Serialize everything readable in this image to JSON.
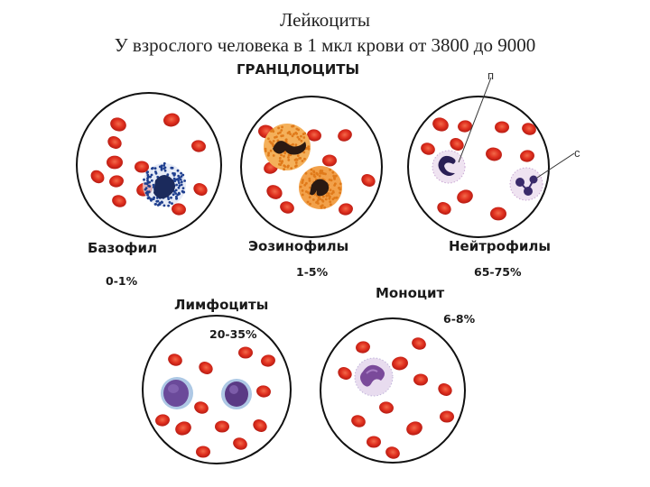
{
  "title": "Лейкоциты",
  "subtitle": "У взрослого человека в 1 мкл крови от 3800 до 9000",
  "section_heading": "ГРАНЦЛОЦИТЫ",
  "cells": [
    {
      "label": "Базофил",
      "percent": "0-1%"
    },
    {
      "label": "Эозинофилы",
      "percent": "1-5%"
    },
    {
      "label": "Нейтрофилы",
      "percent": "65-75%"
    },
    {
      "label": "Лимфоциты",
      "percent": "20-35%"
    },
    {
      "label": "Моноцит",
      "percent": "6-8%"
    }
  ],
  "pointer_labels": [
    "п",
    "с"
  ],
  "colors": {
    "erythrocyte": "#d9281f",
    "basophil_granules": "#1f3f8f",
    "eosinophil_granules": "#e07a1a",
    "neutrophil_nucleus": "#2a1f55",
    "lymphocyte_nucleus": "#5a3a8a",
    "monocyte_nucleus": "#7a4a9a"
  }
}
